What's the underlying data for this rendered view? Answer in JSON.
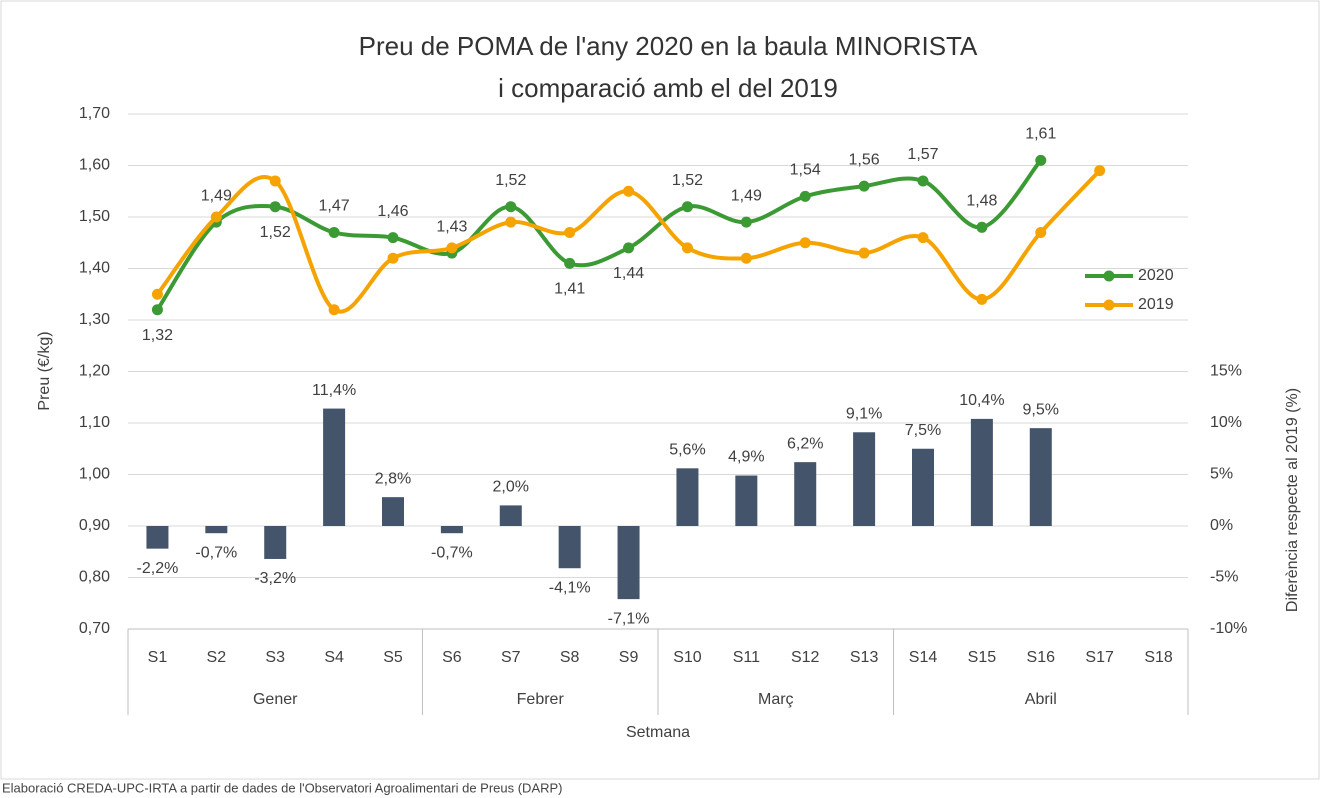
{
  "chart_data": {
    "type": "combo",
    "title": [
      "Preu de POMA de l'any 2020 en la baula MINORISTA",
      "i comparació amb el del 2019"
    ],
    "xlabel": "Setmana",
    "ylabel": "Preu (€/kg)",
    "y2label": "Diferència respecte al 2019 (%)",
    "footnote": "Elaboració CREDA-UPC-IRTA a partir de dades de l'Observatori Agroalimentari de Preus (DARP)",
    "categories": [
      "S1",
      "S2",
      "S3",
      "S4",
      "S5",
      "S6",
      "S7",
      "S8",
      "S9",
      "S10",
      "S11",
      "S12",
      "S13",
      "S14",
      "S15",
      "S16",
      "S17",
      "S18"
    ],
    "groups": [
      "Gener",
      "Gener",
      "Gener",
      "Gener",
      "Gener",
      "Febrer",
      "Febrer",
      "Febrer",
      "Febrer",
      "Març",
      "Març",
      "Març",
      "Març",
      "Abril",
      "Abril",
      "Abril",
      "Abril",
      "Abril"
    ],
    "ylim": [
      0.7,
      1.7
    ],
    "yticks": [
      {
        "value": 0.7,
        "label": "0,70"
      },
      {
        "value": 0.8,
        "label": "0,80"
      },
      {
        "value": 0.9,
        "label": "0,90"
      },
      {
        "value": 1.0,
        "label": "1,00"
      },
      {
        "value": 1.1,
        "label": "1,10"
      },
      {
        "value": 1.2,
        "label": "1,20"
      },
      {
        "value": 1.3,
        "label": "1,30"
      },
      {
        "value": 1.4,
        "label": "1,40"
      },
      {
        "value": 1.5,
        "label": "1,50"
      },
      {
        "value": 1.6,
        "label": "1,60"
      },
      {
        "value": 1.7,
        "label": "1,70"
      }
    ],
    "y2lim": [
      -10,
      40
    ],
    "y2ticks": [
      {
        "value": -10,
        "label": "-10%"
      },
      {
        "value": -5,
        "label": "-5%"
      },
      {
        "value": 0,
        "label": "0%"
      },
      {
        "value": 5,
        "label": "5%"
      },
      {
        "value": 10,
        "label": "10%"
      },
      {
        "value": 15,
        "label": "15%"
      }
    ],
    "grid": true,
    "legend": "right",
    "series": [
      {
        "name": "Diferència",
        "kind": "bar",
        "axis": "y2",
        "color": "#44546a",
        "values": [
          -2.2,
          -0.7,
          -3.2,
          11.4,
          2.8,
          -0.7,
          2.0,
          -4.1,
          -7.1,
          5.6,
          4.9,
          6.2,
          9.1,
          7.5,
          10.4,
          9.5,
          null,
          null
        ],
        "value_labels": [
          "-2,2%",
          "-0,7%",
          "-3,2%",
          "11,4%",
          "2,8%",
          "-0,7%",
          "2,0%",
          "-4,1%",
          "-7,1%",
          "5,6%",
          "4,9%",
          "6,2%",
          "9,1%",
          "7,5%",
          "10,4%",
          "9,5%",
          null,
          null
        ]
      },
      {
        "name": "2020",
        "kind": "line",
        "color": "#3c9a34",
        "values": [
          1.32,
          1.49,
          1.52,
          1.47,
          1.46,
          1.43,
          1.52,
          1.41,
          1.44,
          1.52,
          1.49,
          1.54,
          1.56,
          1.57,
          1.48,
          1.61,
          null,
          null
        ],
        "value_labels": [
          "1,32",
          "1,49",
          "1,52",
          "1,47",
          "1,46",
          "1,43",
          "1,52",
          "1,41",
          "1,44",
          "1,52",
          "1,49",
          "1,54",
          "1,56",
          "1,57",
          "1,48",
          "1,61",
          null,
          null
        ]
      },
      {
        "name": "2019",
        "kind": "line",
        "color": "#f5a300",
        "values": [
          1.35,
          1.5,
          1.57,
          1.32,
          1.42,
          1.44,
          1.49,
          1.47,
          1.55,
          1.44,
          1.42,
          1.45,
          1.43,
          1.46,
          1.34,
          1.47,
          1.59,
          null
        ]
      }
    ]
  }
}
